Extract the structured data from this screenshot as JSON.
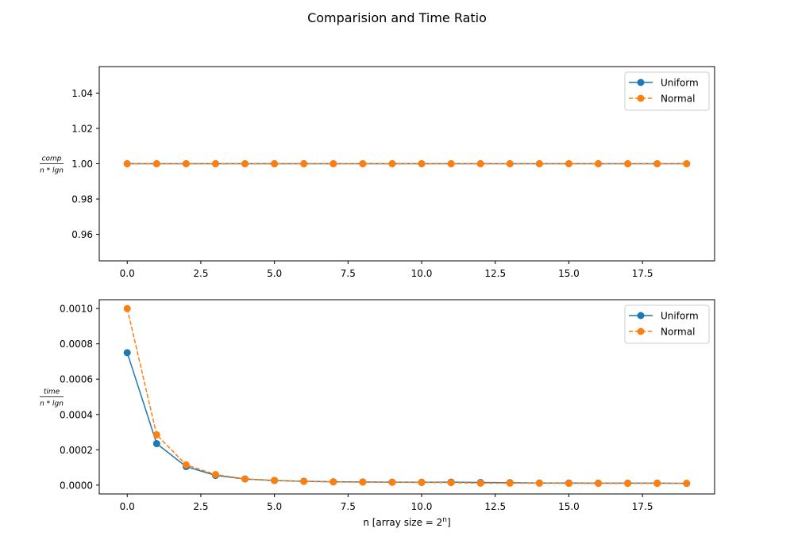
{
  "figure": {
    "title": "Comparision and Time Ratio"
  },
  "chart_data": [
    {
      "type": "line",
      "xlabel": "",
      "ylabel": {
        "numerator": "comp",
        "denominator": "n * lgn"
      },
      "x": [
        0,
        1,
        2,
        3,
        4,
        5,
        6,
        7,
        8,
        9,
        10,
        11,
        12,
        13,
        14,
        15,
        16,
        17,
        18,
        19
      ],
      "xlim": [
        -0.95,
        19.95
      ],
      "ylim": [
        0.945,
        1.055
      ],
      "xticks": [
        0,
        2.5,
        5,
        7.5,
        10,
        12.5,
        15,
        17.5
      ],
      "xtick_labels": [
        "0.0",
        "2.5",
        "5.0",
        "7.5",
        "10.0",
        "12.5",
        "15.0",
        "17.5"
      ],
      "yticks": [
        0.96,
        0.98,
        1.0,
        1.02,
        1.04
      ],
      "ytick_labels": [
        "0.96",
        "0.98",
        "1.00",
        "1.02",
        "1.04"
      ],
      "grid": false,
      "legend_position": "top-right",
      "series": [
        {
          "name": "Uniform",
          "color": "#1f77b4",
          "line_style": "solid",
          "marker": "circle",
          "values": [
            1,
            1,
            1,
            1,
            1,
            1,
            1,
            1,
            1,
            1,
            1,
            1,
            1,
            1,
            1,
            1,
            1,
            1,
            1,
            1
          ]
        },
        {
          "name": "Normal",
          "color": "#ff7f0e",
          "line_style": "dashed",
          "marker": "circle",
          "values": [
            1,
            1,
            1,
            1,
            1,
            1,
            1,
            1,
            1,
            1,
            1,
            1,
            1,
            1,
            1,
            1,
            1,
            1,
            1,
            1
          ]
        }
      ]
    },
    {
      "type": "line",
      "xlabel": {
        "prefix": "n [array size = 2",
        "superscript": "n",
        "suffix": "]"
      },
      "ylabel": {
        "numerator": "time",
        "denominator": "n * lgn"
      },
      "x": [
        0,
        1,
        2,
        3,
        4,
        5,
        6,
        7,
        8,
        9,
        10,
        11,
        12,
        13,
        14,
        15,
        16,
        17,
        18,
        19
      ],
      "xlim": [
        -0.95,
        19.95
      ],
      "ylim": [
        -5e-05,
        0.00105
      ],
      "xticks": [
        0,
        2.5,
        5,
        7.5,
        10,
        12.5,
        15,
        17.5
      ],
      "xtick_labels": [
        "0.0",
        "2.5",
        "5.0",
        "7.5",
        "10.0",
        "12.5",
        "15.0",
        "17.5"
      ],
      "yticks": [
        0,
        0.0002,
        0.0004,
        0.0006,
        0.0008,
        0.001
      ],
      "ytick_labels": [
        "0.0000",
        "0.0002",
        "0.0004",
        "0.0006",
        "0.0008",
        "0.0010"
      ],
      "grid": false,
      "legend_position": "top-right",
      "series": [
        {
          "name": "Uniform",
          "color": "#1f77b4",
          "line_style": "solid",
          "marker": "circle",
          "values": [
            0.00075,
            0.000235,
            0.000105,
            5.5e-05,
            3.5e-05,
            2.6e-05,
            2.2e-05,
            1.9e-05,
            1.8e-05,
            1.7e-05,
            1.6e-05,
            1.7e-05,
            1.5e-05,
            1.4e-05,
            1.2e-05,
            1.2e-05,
            1.1e-05,
            1.1e-05,
            1.1e-05,
            1e-05
          ]
        },
        {
          "name": "Normal",
          "color": "#ff7f0e",
          "line_style": "dashed",
          "marker": "circle",
          "values": [
            0.001,
            0.000285,
            0.000115,
            6e-05,
            3.5e-05,
            2.7e-05,
            2.1e-05,
            1.8e-05,
            1.7e-05,
            1.6e-05,
            1.5e-05,
            1.4e-05,
            1.1e-05,
            1.1e-05,
            1.1e-05,
            1e-05,
            1e-05,
            1e-05,
            1e-05,
            1e-05
          ]
        }
      ]
    }
  ]
}
